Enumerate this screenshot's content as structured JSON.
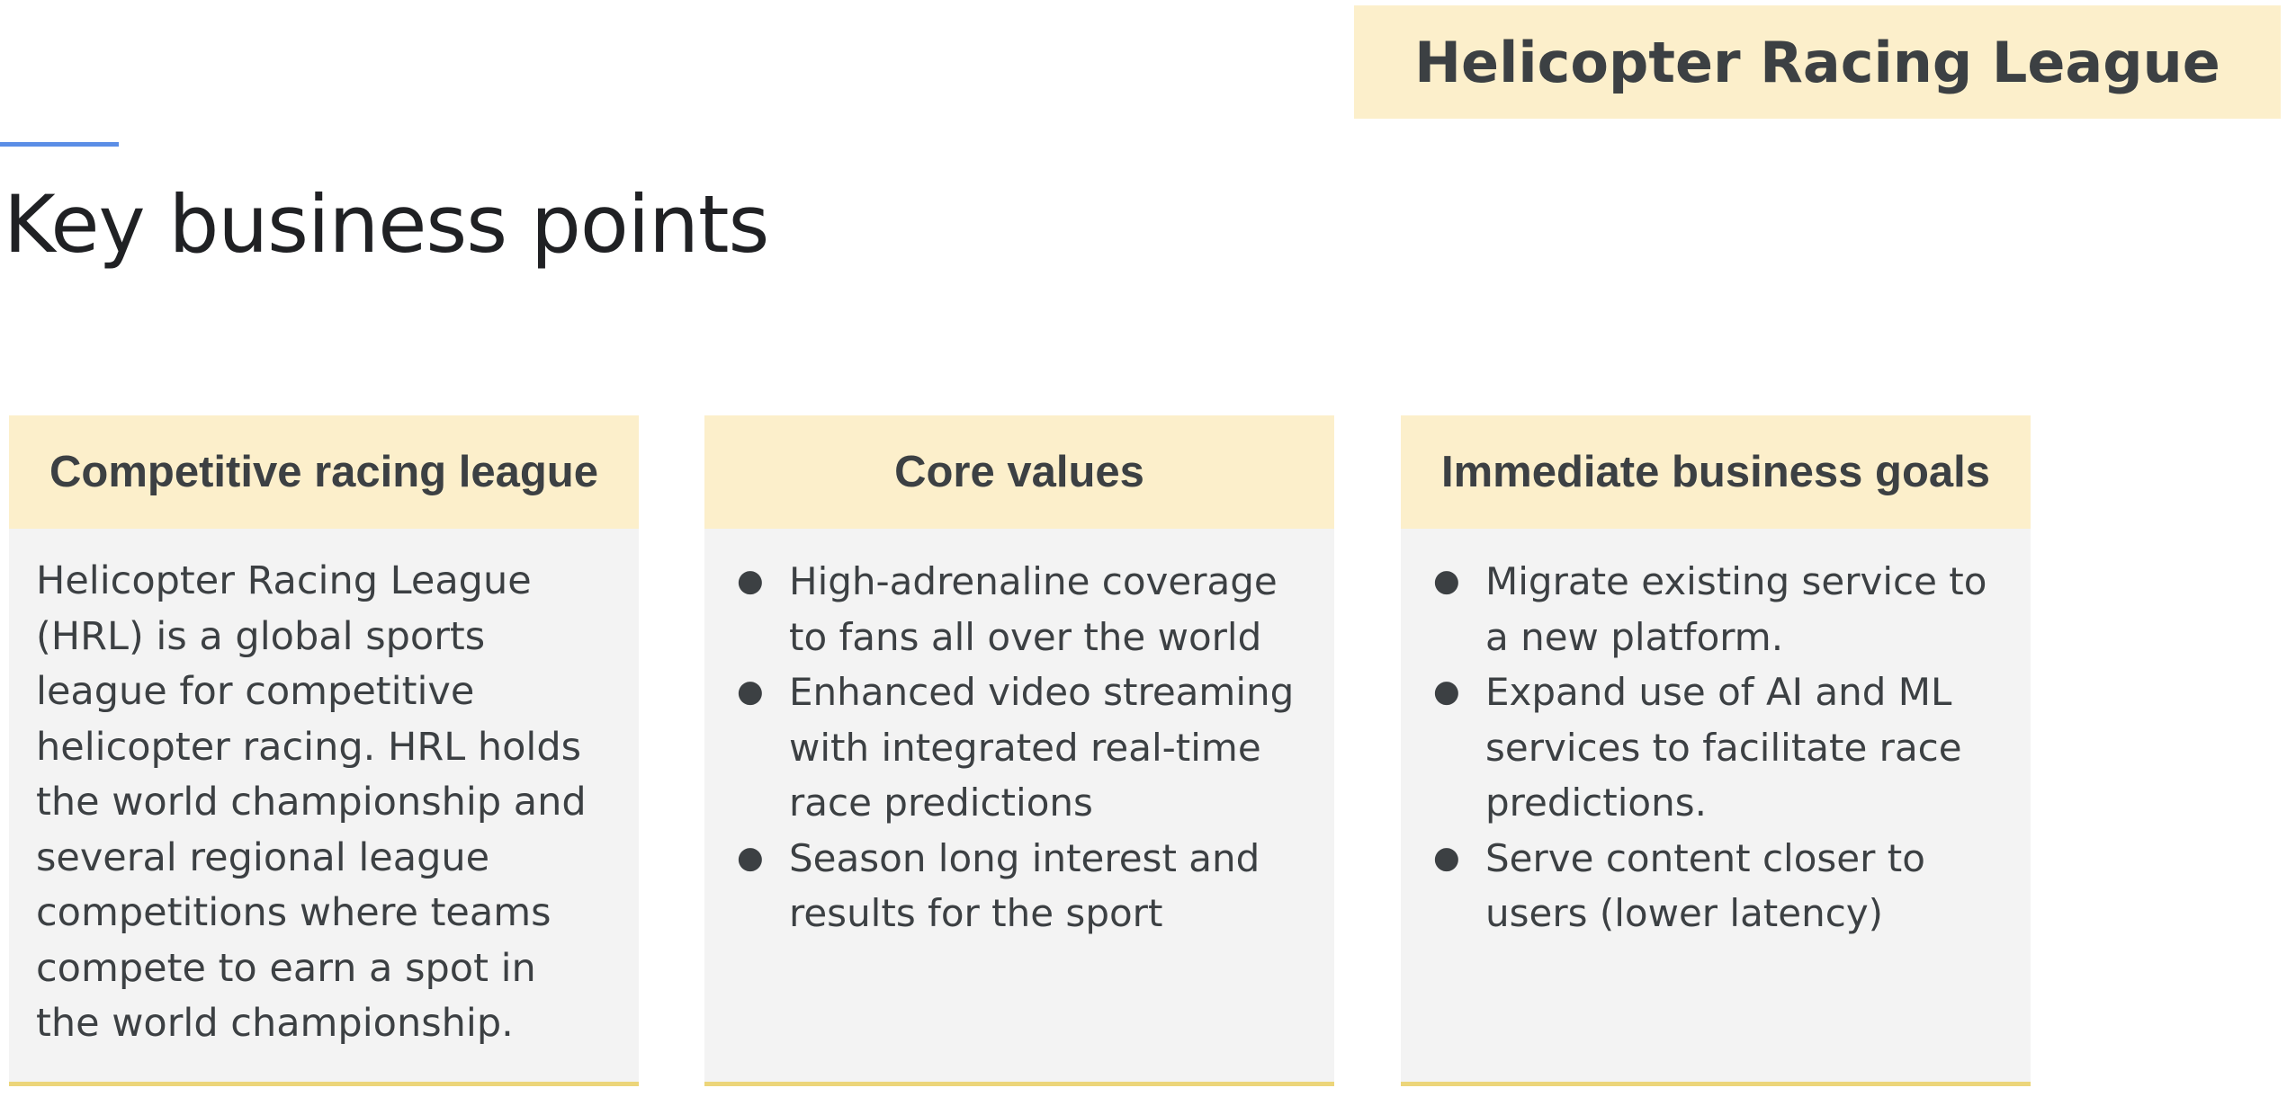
{
  "header": {
    "tag": "Helicopter Racing League",
    "title": "Key business points"
  },
  "cards": [
    {
      "title": "Competitive racing league",
      "text": "Helicopter Racing League (HRL) is a global sports league for competitive helicopter racing. HRL holds the world championship and several regional league competitions where teams compete to earn a spot in the world championship."
    },
    {
      "title": "Core values",
      "bullets": [
        "High-adrenaline coverage to fans all over the world",
        "Enhanced video streaming with integrated real-time race predictions",
        "Season long interest and results for the sport"
      ]
    },
    {
      "title": "Immediate business goals",
      "bullets": [
        "Migrate existing service to a new platform.",
        "Expand use of AI and ML services to facilitate race predictions.",
        "Serve content closer to users (lower latency)"
      ]
    }
  ],
  "colors": {
    "tag_background": "#fcefcb",
    "card_background": "#f3f3f3",
    "accent_line": "#5b8ee6",
    "card_underline": "#ecd57a",
    "text": "#3c4043"
  }
}
